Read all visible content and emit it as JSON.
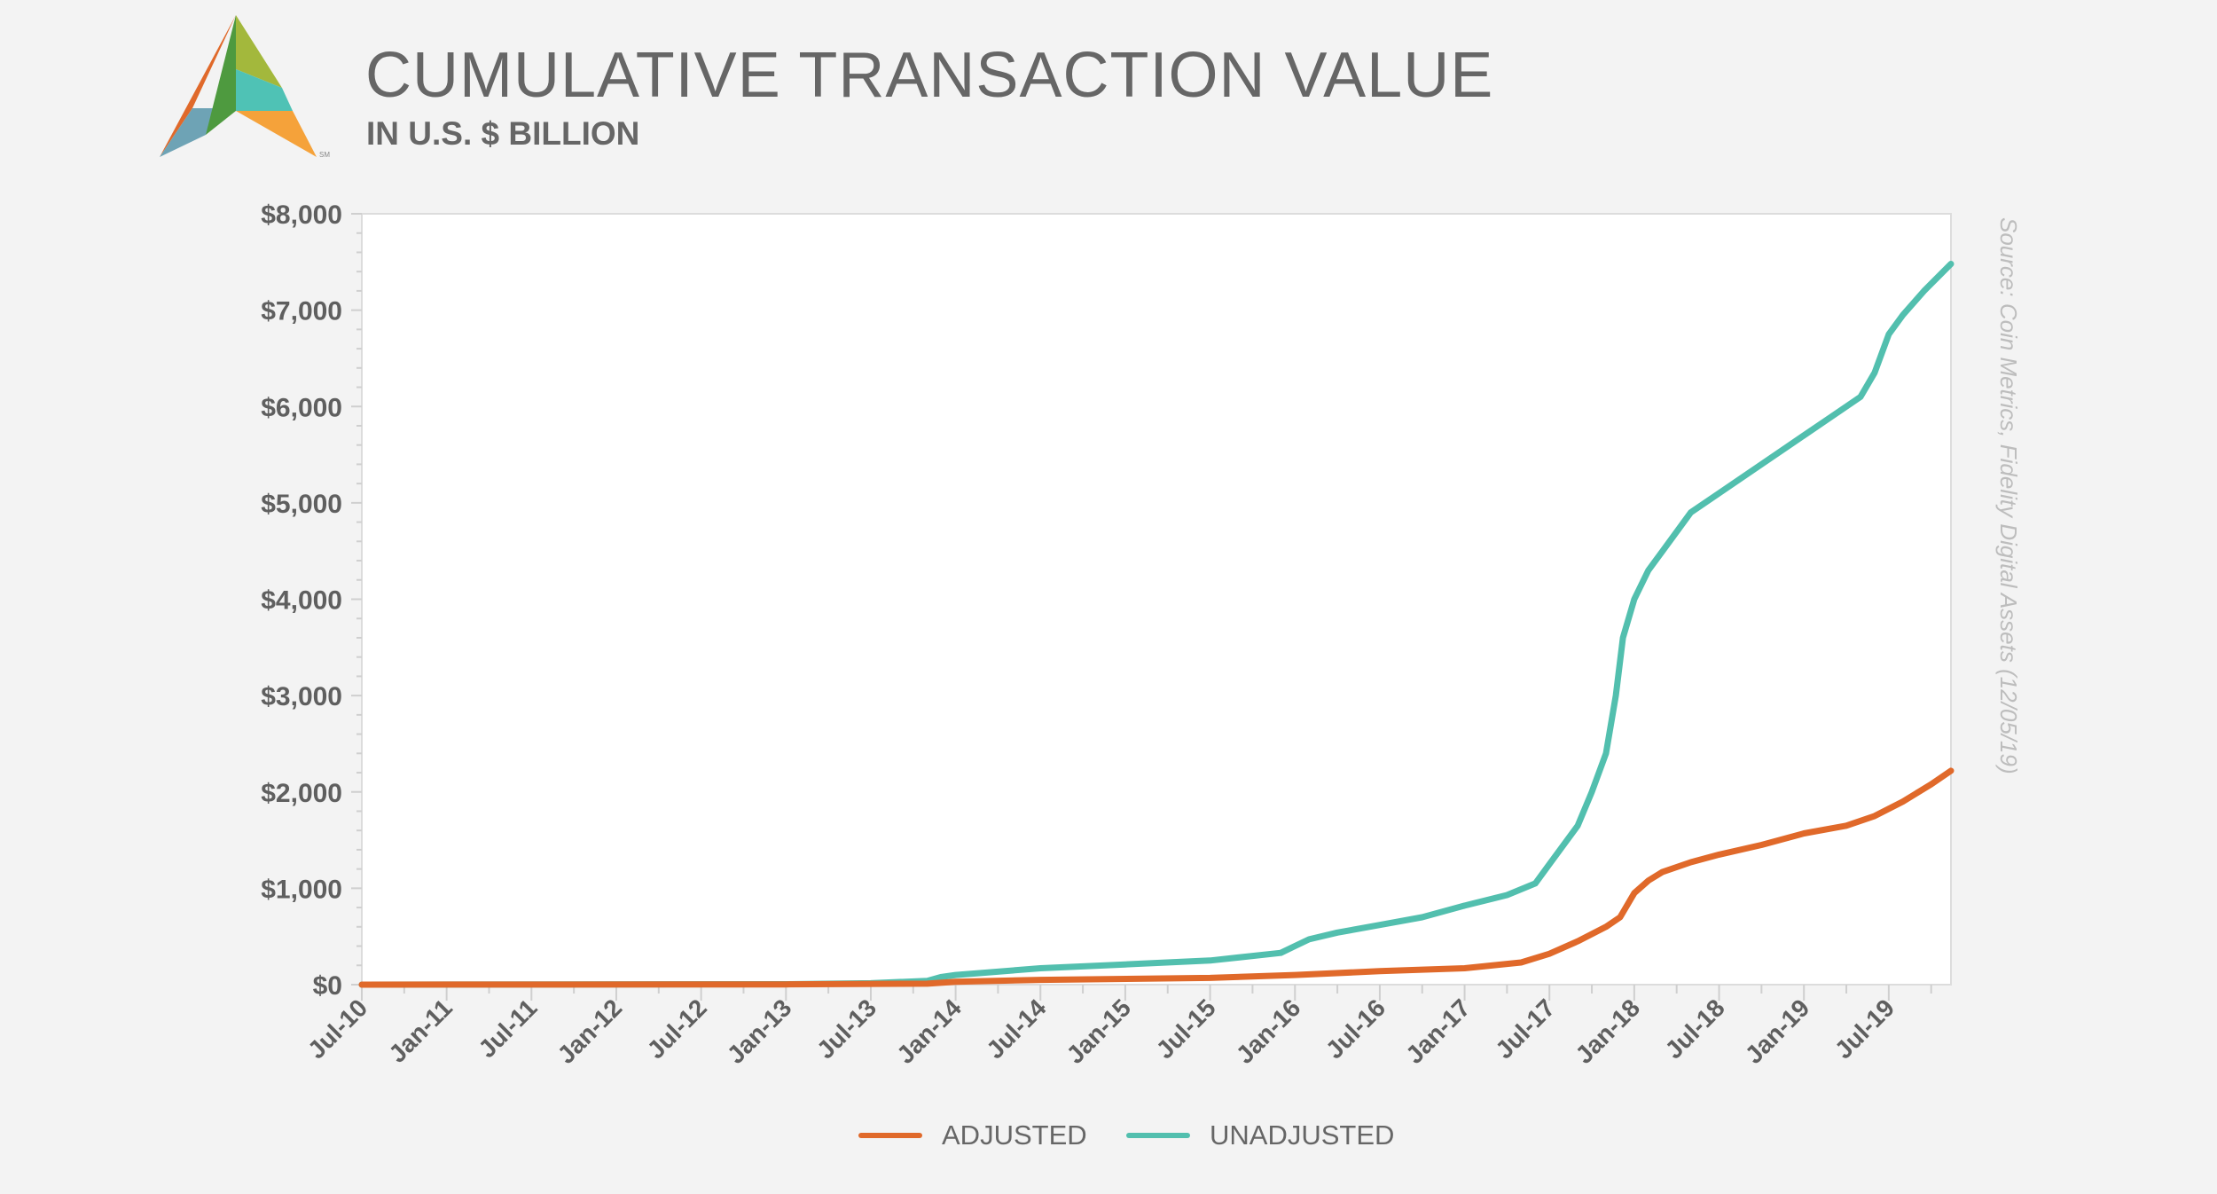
{
  "title": "CUMULATIVE TRANSACTION VALUE",
  "subtitle": "IN U.S. $ BILLION",
  "logo": {
    "mark": "SM"
  },
  "source": "Source: Coin Metrics, Fidelity Digital Assets (12/05/19)",
  "colors": {
    "adjusted": "#e0692a",
    "unadjusted": "#52bfae"
  },
  "chart_data": {
    "type": "line",
    "title": "CUMULATIVE TRANSACTION VALUE",
    "ylabel": "IN U.S. $ BILLION",
    "xlabel": "",
    "x_unit": "months since Jul-10",
    "xlim": [
      0,
      112.4
    ],
    "ylim": [
      0,
      8000
    ],
    "yticks": [
      0,
      1000,
      2000,
      3000,
      4000,
      5000,
      6000,
      7000,
      8000
    ],
    "ytick_labels": [
      "$0",
      "$1,000",
      "$2,000",
      "$3,000",
      "$4,000",
      "$5,000",
      "$6,000",
      "$7,000",
      "$8,000"
    ],
    "xticks": [
      0,
      6,
      12,
      18,
      24,
      30,
      36,
      42,
      48,
      54,
      60,
      66,
      72,
      78,
      84,
      90,
      96,
      102,
      108
    ],
    "xtick_labels": [
      "Jul-10",
      "Jan-11",
      "Jul-11",
      "Jan-12",
      "Jul-12",
      "Jan-13",
      "Jul-13",
      "Jan-14",
      "Jul-14",
      "Jan-15",
      "Jul-15",
      "Jan-16",
      "Jul-16",
      "Jan-17",
      "Jul-17",
      "Jan-18",
      "Jul-18",
      "Jan-19",
      "Jul-19"
    ],
    "legend": "bottom-center",
    "grid": false,
    "series": [
      {
        "name": "ADJUSTED",
        "x": [
          0,
          30,
          40,
          42,
          48,
          60,
          66,
          72,
          78,
          82,
          84,
          86,
          88,
          89,
          90,
          91,
          92,
          94,
          96,
          99,
          102,
          105,
          107,
          109,
          111,
          112.4
        ],
        "values": [
          0,
          3,
          10,
          30,
          50,
          70,
          100,
          140,
          170,
          230,
          320,
          450,
          600,
          700,
          950,
          1080,
          1170,
          1270,
          1350,
          1450,
          1570,
          1650,
          1750,
          1900,
          2080,
          2220
        ]
      },
      {
        "name": "UNADJUSTED",
        "x": [
          0,
          30,
          36,
          40,
          41,
          42,
          48,
          54,
          60,
          65,
          66,
          67,
          69,
          72,
          75,
          78,
          81,
          83,
          84,
          86,
          87,
          88,
          88.7,
          89.2,
          90,
          91,
          92,
          94,
          96,
          99,
          102,
          104,
          106,
          107,
          108,
          109,
          110.5,
          112.4
        ],
        "values": [
          0,
          5,
          15,
          40,
          80,
          100,
          170,
          210,
          250,
          330,
          400,
          470,
          540,
          620,
          700,
          820,
          930,
          1050,
          1250,
          1650,
          2000,
          2400,
          3000,
          3600,
          4000,
          4300,
          4500,
          4900,
          5100,
          5400,
          5700,
          5900,
          6100,
          6350,
          6750,
          6950,
          7200,
          7480
        ]
      }
    ]
  }
}
